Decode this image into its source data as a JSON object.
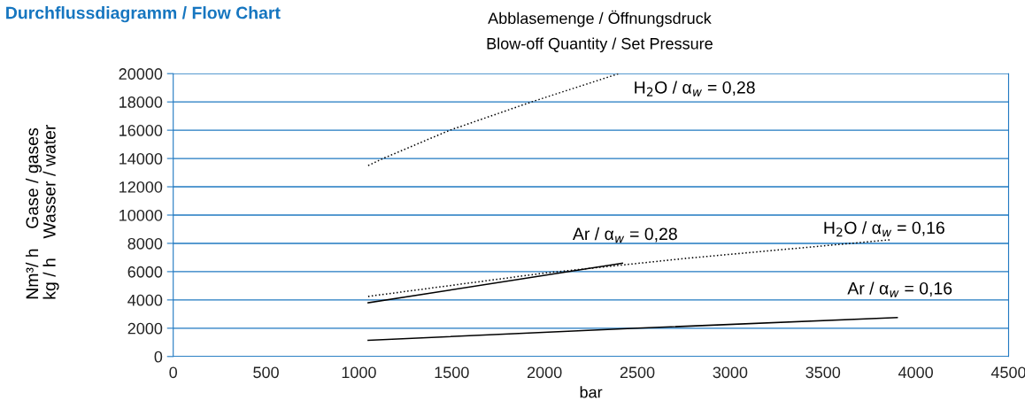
{
  "chart_data": {
    "type": "line",
    "title": "Durchflussdiagramm / Flow Chart",
    "subtitle": "Abblasemenge / Öffnungsdruck\nBlow-off Quantity / Set Pressure",
    "xlabel": "bar",
    "ylabel": "Nm³/ h    Gase / gases\nkg / h    Wasser / water",
    "series": [
      {
        "name": "H$_{2}$O / α$_{w}$ = 0,28",
        "color": "#000000",
        "line_style": "dotted",
        "x": [
          1050,
          1130,
          1490,
          1930,
          2400
        ],
        "values": [
          13500,
          14000,
          16000,
          18000,
          20000
        ]
      },
      {
        "name": "Ar / α$_{w}$ = 0,28",
        "color": "#000000",
        "line_style": "solid",
        "x": [
          1050,
          2420
        ],
        "values": [
          3800,
          6600
        ]
      },
      {
        "name": "H$_{2}$O / α$_{w}$ = 0,16",
        "color": "#000000",
        "line_style": "dotted",
        "x": [
          1050,
          2000,
          2770,
          3860
        ],
        "values": [
          4250,
          5900,
          6950,
          8250
        ]
      },
      {
        "name": "Ar / α$_{w}$ = 0,16",
        "color": "#000000",
        "line_style": "solid",
        "x": [
          1050,
          2500,
          3900
        ],
        "values": [
          1150,
          2000,
          2750
        ]
      }
    ],
    "xlim": [
      0,
      4500
    ],
    "xticks": [
      0,
      500,
      1000,
      1500,
      2000,
      2500,
      3000,
      3500,
      4000,
      4500
    ],
    "ylim": [
      0,
      20000
    ],
    "yticks": [
      0,
      2000,
      4000,
      6000,
      8000,
      10000,
      12000,
      14000,
      16000,
      18000,
      20000
    ],
    "grid": "y",
    "legend": false
  }
}
